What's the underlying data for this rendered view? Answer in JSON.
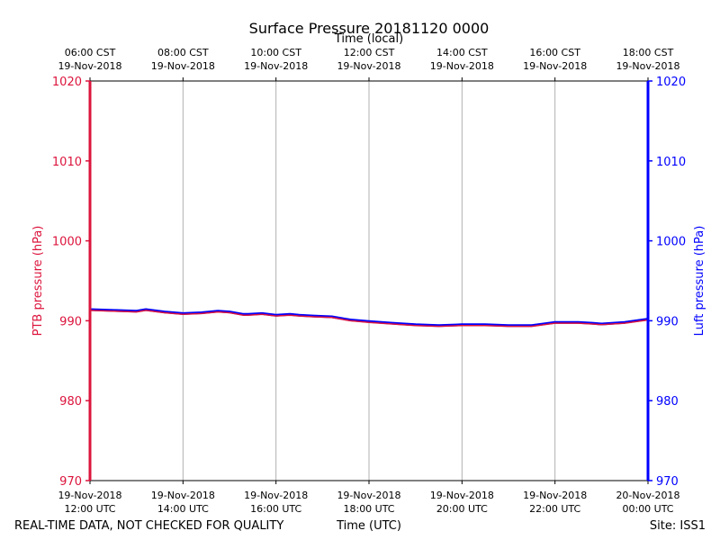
{
  "chart_data": {
    "type": "line",
    "title": "Surface Pressure 20181120 0000",
    "top_axis_label": "Time (local)",
    "xlabel": "Time (UTC)",
    "ylabel_left": "PTB pressure (hPa)",
    "ylabel_right": "Luft pressure (hPa)",
    "footer_left": "REAL-TIME DATA, NOT CHECKED FOR QUALITY",
    "footer_right": "Site: ISS1",
    "ylim": [
      970,
      1020
    ],
    "yticks": [
      970,
      980,
      990,
      1000,
      1010,
      1020
    ],
    "x_range_hours": [
      12,
      24
    ],
    "grid": "vertical",
    "bottom_ticks": [
      {
        "hour": 12,
        "date": "19-Nov-2018",
        "time": "12:00 UTC"
      },
      {
        "hour": 14,
        "date": "19-Nov-2018",
        "time": "14:00 UTC"
      },
      {
        "hour": 16,
        "date": "19-Nov-2018",
        "time": "16:00 UTC"
      },
      {
        "hour": 18,
        "date": "19-Nov-2018",
        "time": "18:00 UTC"
      },
      {
        "hour": 20,
        "date": "19-Nov-2018",
        "time": "20:00 UTC"
      },
      {
        "hour": 22,
        "date": "19-Nov-2018",
        "time": "22:00 UTC"
      },
      {
        "hour": 24,
        "date": "20-Nov-2018",
        "time": "00:00 UTC"
      }
    ],
    "top_ticks": [
      {
        "hour": 12,
        "time": "06:00 CST",
        "date": "19-Nov-2018"
      },
      {
        "hour": 14,
        "time": "08:00 CST",
        "date": "19-Nov-2018"
      },
      {
        "hour": 16,
        "time": "10:00 CST",
        "date": "19-Nov-2018"
      },
      {
        "hour": 18,
        "time": "12:00 CST",
        "date": "19-Nov-2018"
      },
      {
        "hour": 20,
        "time": "14:00 CST",
        "date": "19-Nov-2018"
      },
      {
        "hour": 22,
        "time": "16:00 CST",
        "date": "19-Nov-2018"
      },
      {
        "hour": 24,
        "time": "18:00 CST",
        "date": "19-Nov-2018"
      }
    ],
    "series": [
      {
        "color": "#0000ff",
        "x": [
          12.0,
          12.5,
          13.0,
          13.2,
          13.6,
          14.0,
          14.4,
          14.75,
          15.0,
          15.3,
          15.4,
          15.7,
          16.0,
          16.3,
          16.5,
          16.8,
          17.2,
          17.6,
          18.0,
          18.5,
          19.0,
          19.5,
          20.0,
          20.5,
          21.0,
          21.5,
          22.0,
          22.5,
          22.8,
          23.0,
          23.5,
          24.0
        ],
        "values": [
          991.4,
          991.3,
          991.2,
          991.4,
          991.1,
          990.9,
          991.0,
          991.2,
          991.1,
          990.8,
          990.8,
          990.9,
          990.7,
          990.8,
          990.7,
          990.6,
          990.5,
          990.1,
          989.9,
          989.7,
          989.5,
          989.4,
          989.5,
          989.5,
          989.4,
          989.4,
          989.8,
          989.8,
          989.7,
          989.6,
          989.8,
          990.2
        ]
      },
      {
        "color": "#dc143c",
        "x": [
          12.0,
          12.5,
          13.0,
          13.2,
          13.6,
          14.0,
          14.4,
          14.75,
          15.0,
          15.3,
          15.4,
          15.7,
          16.0,
          16.3,
          16.5,
          16.8,
          17.2,
          17.6,
          18.0,
          18.5,
          19.0,
          19.5,
          20.0,
          20.5,
          21.0,
          21.5,
          22.0,
          22.5,
          22.8,
          23.0,
          23.5,
          24.0
        ],
        "values": [
          991.3,
          991.2,
          991.1,
          991.3,
          991.0,
          990.8,
          990.9,
          991.1,
          991.0,
          990.7,
          990.7,
          990.8,
          990.6,
          990.7,
          990.6,
          990.5,
          990.4,
          990.0,
          989.8,
          989.6,
          989.4,
          989.3,
          989.4,
          989.4,
          989.3,
          989.3,
          989.7,
          989.7,
          989.6,
          989.5,
          989.7,
          990.1
        ]
      }
    ],
    "colors": {
      "left_axis": "#dc143c",
      "right_axis": "#0000ff",
      "grid": "#b0b0b0"
    }
  }
}
